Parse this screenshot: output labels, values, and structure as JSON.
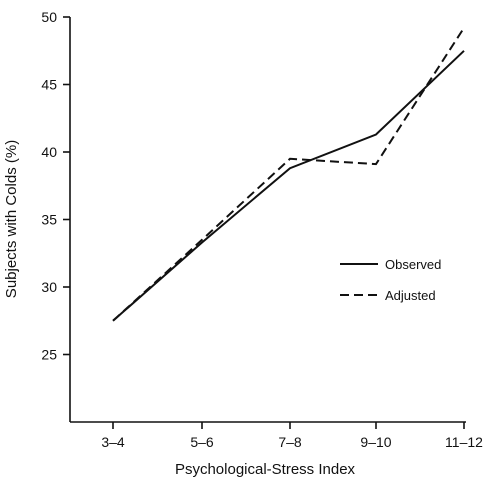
{
  "chart_data": {
    "type": "line",
    "title": "",
    "xlabel": "Psychological-Stress Index",
    "ylabel": "Subjects with Colds (%)",
    "categories": [
      "3–4",
      "5–6",
      "7–8",
      "9–10",
      "11–12"
    ],
    "ylim": [
      20,
      50
    ],
    "yticks": [
      25,
      30,
      35,
      40,
      45,
      50
    ],
    "grid": false,
    "legend_position": "right",
    "series": [
      {
        "name": "Observed",
        "style": "solid",
        "values": [
          27.5,
          33.3,
          38.8,
          41.3,
          47.5
        ]
      },
      {
        "name": "Adjusted",
        "style": "dashed",
        "values": [
          27.5,
          33.5,
          39.5,
          39.1,
          49.2
        ]
      }
    ]
  }
}
